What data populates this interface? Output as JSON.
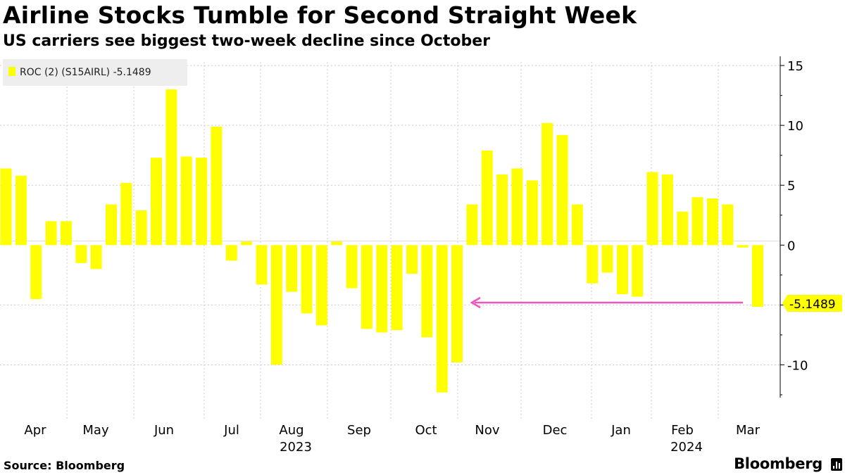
{
  "title": "Airline Stocks Tumble for Second Straight Week",
  "subtitle": "US carriers see biggest two-week decline since October",
  "source": "Source: Bloomberg",
  "brand": "Bloomberg",
  "colors": {
    "bar": "#ffff00",
    "grid": "#cccccc",
    "arrow": "#ee55bb",
    "legend_bg": "#eeeeee"
  },
  "chart_data": {
    "type": "bar",
    "title": "Airline Stocks Tumble for Second Straight Week",
    "legend": "ROC (2) (S15AIRL) -5.1489",
    "last_value_label": "-5.1489",
    "ylim": [
      -14.5,
      15.3
    ],
    "yticks": [
      15,
      10,
      5,
      0,
      -10
    ],
    "ytick_labels": [
      "15",
      "10",
      "5",
      "0",
      "-10"
    ],
    "month_labels": [
      "Apr",
      "May",
      "Jun",
      "Jul",
      "Aug",
      "Sep",
      "Oct",
      "Nov",
      "Dec",
      "Jan",
      "Feb",
      "Mar"
    ],
    "year_labels": [
      "2023",
      "2024"
    ],
    "grid": true,
    "series": [
      {
        "name": "ROC (2) (S15AIRL)",
        "values": [
          6.4,
          5.8,
          -4.5,
          2.0,
          2.0,
          -1.5,
          -2.0,
          3.4,
          5.2,
          2.9,
          7.3,
          13.0,
          7.4,
          7.3,
          9.9,
          -1.3,
          0.3,
          -3.3,
          -10.0,
          -3.9,
          -5.7,
          -6.7,
          0.3,
          -3.6,
          -7.0,
          -7.3,
          -7.1,
          -2.4,
          -7.7,
          -12.3,
          -9.8,
          3.4,
          7.9,
          5.9,
          6.4,
          5.4,
          10.2,
          9.2,
          3.4,
          -3.2,
          -2.3,
          -4.1,
          -4.3,
          6.1,
          5.9,
          2.8,
          4.0,
          3.9,
          3.4,
          -0.2,
          -5.1489
        ]
      }
    ]
  }
}
